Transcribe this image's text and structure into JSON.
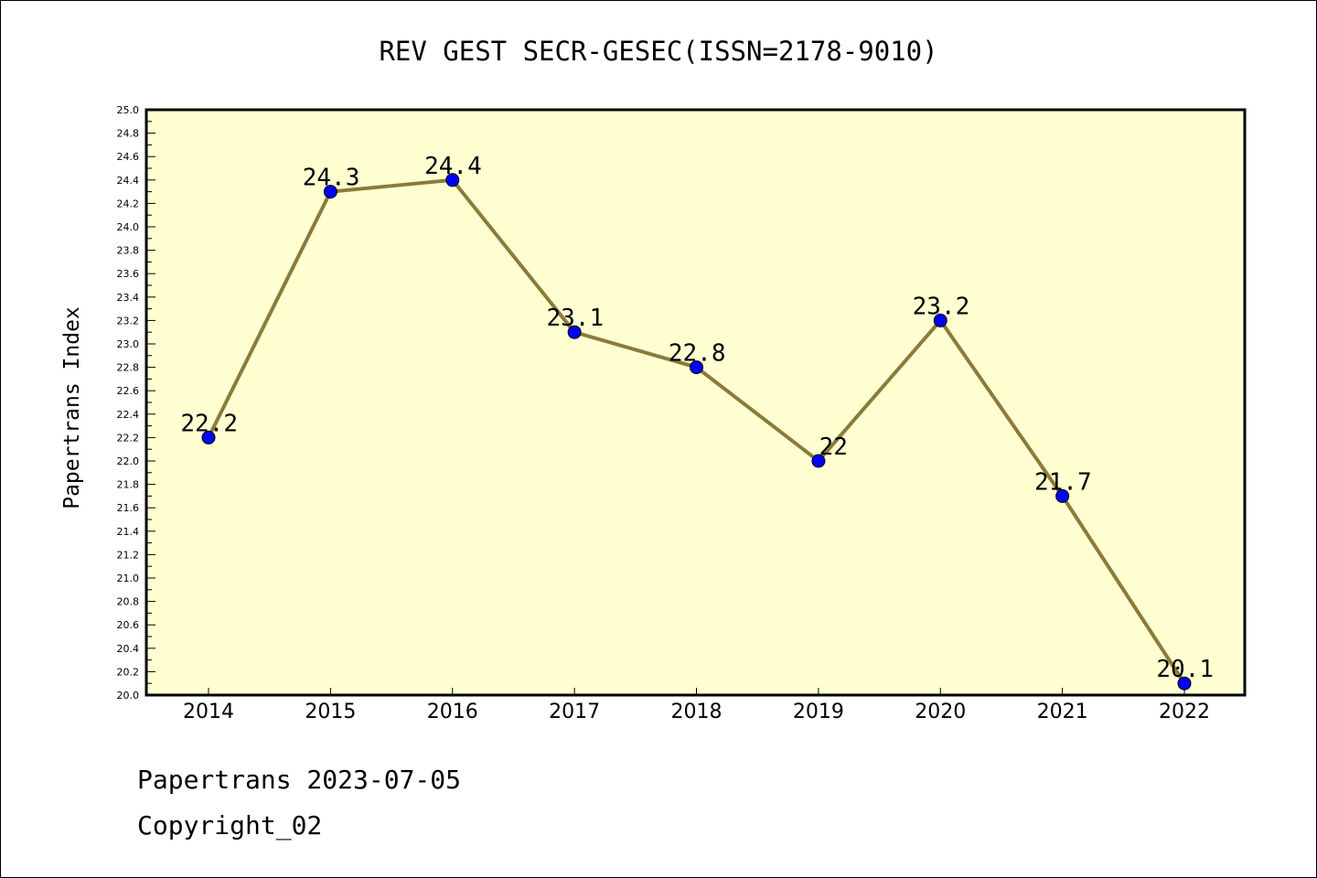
{
  "chart_data": {
    "type": "line",
    "title": "REV GEST SECR-GESEC(ISSN=2178-9010)",
    "xlabel": "",
    "ylabel": "Papertrans Index",
    "categories": [
      "2014",
      "2015",
      "2016",
      "2017",
      "2018",
      "2019",
      "2020",
      "2021",
      "2022"
    ],
    "values": [
      22.2,
      24.3,
      24.4,
      23.1,
      22.8,
      22.0,
      23.2,
      21.7,
      20.1
    ],
    "data_labels": [
      "22.2",
      "24.3",
      "24.4",
      "23.1",
      "22.8",
      "22",
      "23.2",
      "21.7",
      "20.1"
    ],
    "ylim": [
      20.0,
      25.0
    ],
    "ytick_step": 0.2,
    "yminor_step": 0.1,
    "grid": false,
    "colors": {
      "line": "#8b7a3a",
      "marker": "#0000ff",
      "plot_bg": "#ffffd2"
    }
  },
  "footer": {
    "line1": "Papertrans 2023-07-05",
    "line2": "Copyright_02"
  }
}
